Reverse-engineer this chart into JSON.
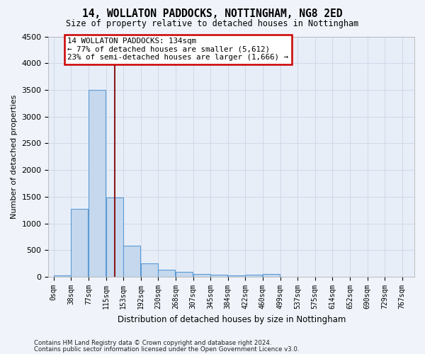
{
  "title1": "14, WOLLATON PADDOCKS, NOTTINGHAM, NG8 2ED",
  "title2": "Size of property relative to detached houses in Nottingham",
  "xlabel": "Distribution of detached houses by size in Nottingham",
  "ylabel": "Number of detached properties",
  "bar_color": "#c5d8ed",
  "bar_edge_color": "#5b9bd5",
  "categories": [
    "0sqm",
    "38sqm",
    "77sqm",
    "115sqm",
    "153sqm",
    "192sqm",
    "230sqm",
    "268sqm",
    "307sqm",
    "345sqm",
    "384sqm",
    "422sqm",
    "460sqm",
    "499sqm",
    "537sqm",
    "575sqm",
    "614sqm",
    "652sqm",
    "690sqm",
    "729sqm",
    "767sqm"
  ],
  "values": [
    30,
    1270,
    3500,
    1480,
    580,
    250,
    140,
    90,
    60,
    40,
    30,
    40,
    50,
    0,
    0,
    0,
    0,
    0,
    0,
    0,
    0
  ],
  "ylim": [
    0,
    4500
  ],
  "yticks": [
    0,
    500,
    1000,
    1500,
    2000,
    2500,
    3000,
    3500,
    4000,
    4500
  ],
  "property_label": "14 WOLLATON PADDOCKS: 134sqm",
  "annotation_line1": "← 77% of detached houses are smaller (5,612)",
  "annotation_line2": "23% of semi-detached houses are larger (1,666) →",
  "vline_x_index": 3,
  "vline_color": "#8b1a1a",
  "annotation_box_edge": "#cc0000",
  "footer1": "Contains HM Land Registry data © Crown copyright and database right 2024.",
  "footer2": "Contains public sector information licensed under the Open Government Licence v3.0.",
  "bg_color": "#e8eef8",
  "grid_color": "#d0d8e8",
  "bin_width": 38
}
